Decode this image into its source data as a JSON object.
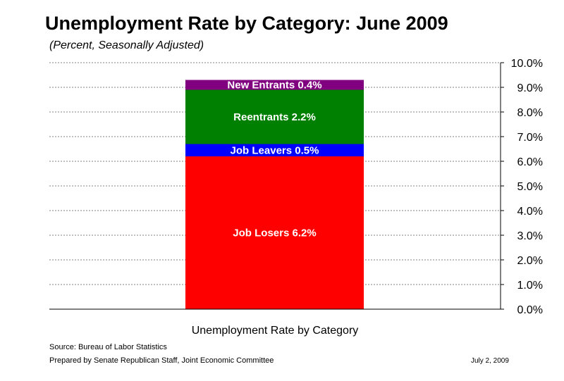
{
  "header": {
    "title": "Unemployment Rate by Category:  June 2009",
    "subtitle": "(Percent, Seasonally Adjusted)"
  },
  "footer": {
    "source": "Source:  Bureau of Labor Statistics",
    "prepared": "Prepared by Senate Republican Staff, Joint Economic Committee",
    "date": "July 2, 2009"
  },
  "chart_data": {
    "type": "bar",
    "stacked": true,
    "title": "Unemployment Rate by Category:  June 2009",
    "subtitle": "(Percent, Seasonally Adjusted)",
    "xlabel": "Unemployment Rate by Category",
    "ylabel": "",
    "ylim": [
      0,
      10
    ],
    "yaxis_position": "right",
    "grid": true,
    "ticks": [
      "0.0%",
      "1.0%",
      "2.0%",
      "3.0%",
      "4.0%",
      "5.0%",
      "6.0%",
      "7.0%",
      "8.0%",
      "9.0%",
      "10.0%"
    ],
    "series": [
      {
        "name": "Job Losers",
        "value": 6.2,
        "label": "Job Losers 6.2%",
        "color": "#ff0000"
      },
      {
        "name": "Job Leavers",
        "value": 0.5,
        "label": "Job Leavers 0.5%",
        "color": "#0000ff"
      },
      {
        "name": "Reentrants",
        "value": 2.2,
        "label": "Reentrants 2.2%",
        "color": "#008000"
      },
      {
        "name": "New Entrants",
        "value": 0.4,
        "label": "New Entrants 0.4%",
        "color": "#800080"
      }
    ]
  }
}
